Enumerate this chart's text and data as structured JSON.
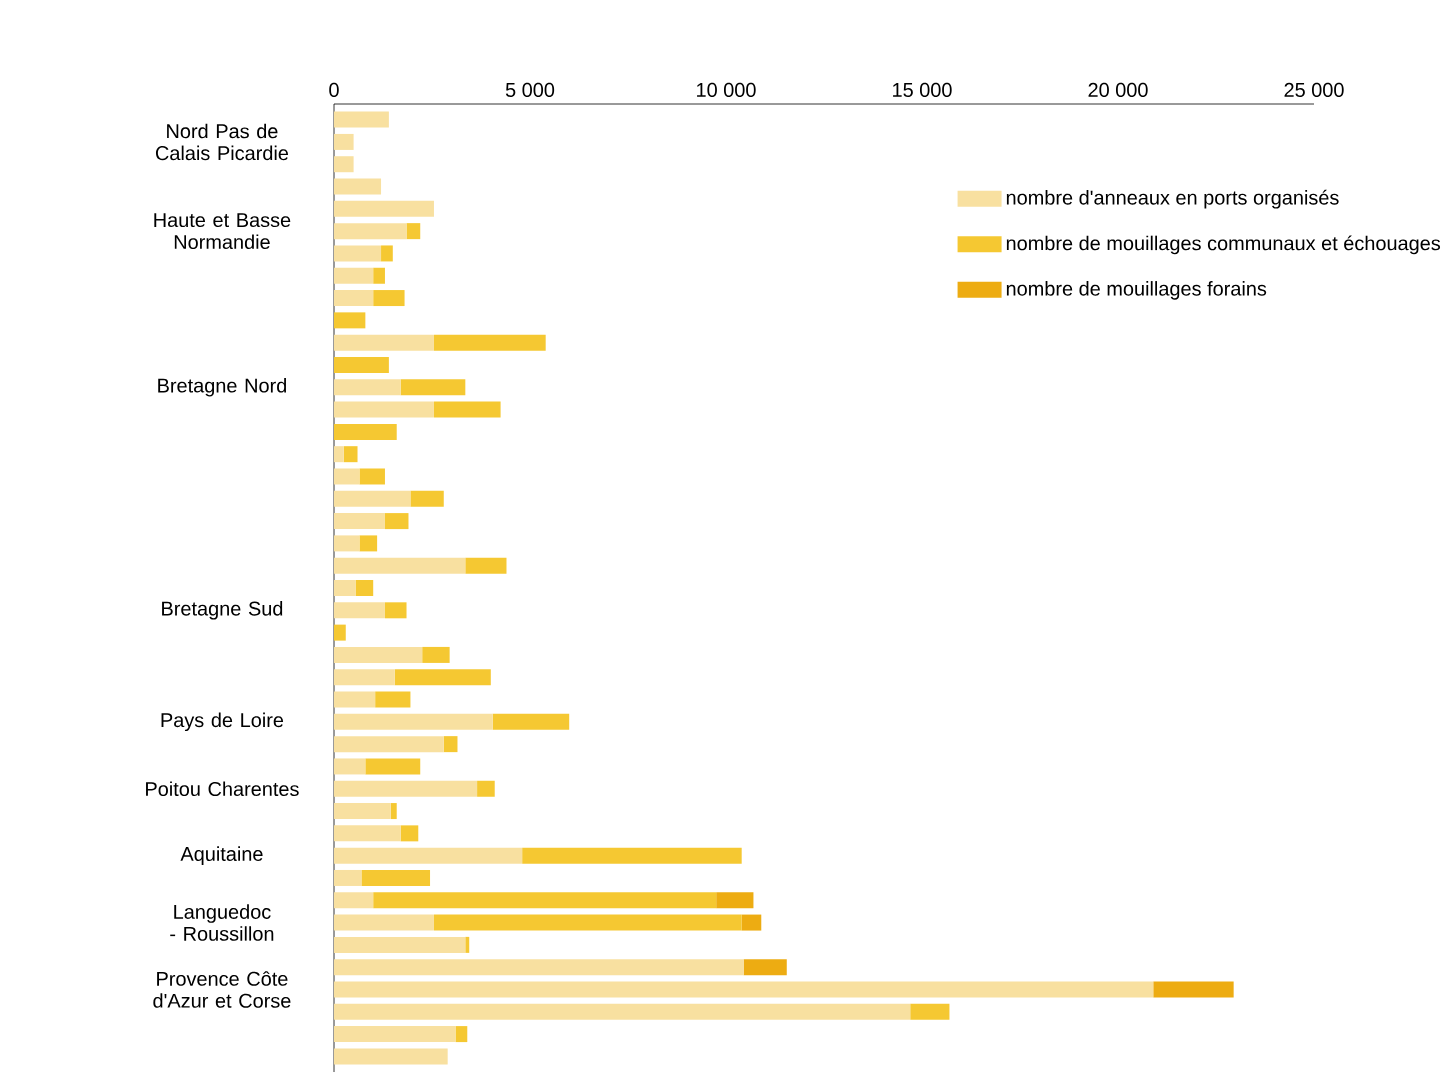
{
  "chart_data": {
    "type": "bar",
    "orientation": "horizontal",
    "stacked": true,
    "categories": [
      null,
      "Nord Pas de Calais Picardie",
      null,
      null,
      null,
      "Haute et Basse Normandie",
      null,
      null,
      null,
      null,
      null,
      null,
      "Bretagne Nord",
      null,
      null,
      null,
      null,
      null,
      null,
      null,
      null,
      null,
      "Bretagne Sud",
      null,
      null,
      null,
      null,
      "Pays de Loire",
      null,
      null,
      "Poitou Charentes",
      null,
      null,
      "Aquitaine",
      null,
      null,
      "Languedoc - Roussillon",
      null,
      null,
      "Provence Côte d'Azur et Corse",
      null,
      null,
      null
    ],
    "series": [
      {
        "name": "nombre d'anneaux en ports organisés",
        "color": "#f8e0a0",
        "values": [
          1400,
          500,
          500,
          1200,
          2550,
          1850,
          1200,
          1000,
          1000,
          0,
          2550,
          0,
          1700,
          2550,
          0,
          250,
          650,
          1950,
          1300,
          650,
          3350,
          550,
          1300,
          0,
          2250,
          1550,
          1050,
          4050,
          2800,
          800,
          3650,
          1450,
          1700,
          4800,
          700,
          1000,
          2550,
          3350,
          10450,
          20900,
          14700,
          3100,
          2900
        ]
      },
      {
        "name": "nombre de mouillages communaux et échouages",
        "color": "#f5c832",
        "values": [
          0,
          0,
          0,
          0,
          0,
          350,
          300,
          300,
          800,
          800,
          2850,
          1400,
          1650,
          1700,
          1600,
          350,
          650,
          850,
          600,
          450,
          1050,
          450,
          550,
          300,
          700,
          2450,
          900,
          1950,
          350,
          1400,
          450,
          150,
          450,
          5600,
          1750,
          8750,
          7850,
          100,
          0,
          0,
          1000,
          300,
          0
        ]
      },
      {
        "name": "nombre de mouillages forains",
        "color": "#edac12",
        "values": [
          0,
          0,
          0,
          0,
          0,
          0,
          0,
          0,
          0,
          0,
          0,
          0,
          0,
          0,
          0,
          0,
          0,
          0,
          0,
          0,
          0,
          0,
          0,
          0,
          0,
          0,
          0,
          0,
          0,
          0,
          0,
          0,
          0,
          0,
          0,
          950,
          500,
          0,
          1100,
          2050,
          0,
          0,
          0
        ]
      }
    ],
    "xlim": [
      0,
      25000
    ],
    "xticks": [
      0,
      {
        "value": 5000,
        "label": "5 000"
      },
      {
        "value": 10000,
        "label": "10 000"
      },
      {
        "value": 15000,
        "label": "15 000"
      },
      {
        "value": 20000,
        "label": "20 000"
      },
      {
        "value": 25000,
        "label": "25 000"
      }
    ],
    "legend": "right"
  }
}
